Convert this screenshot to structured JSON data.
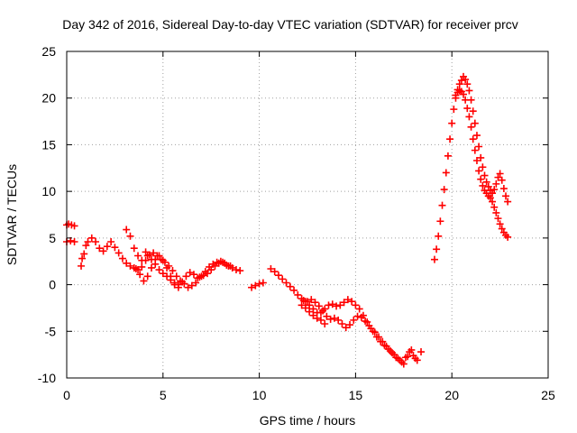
{
  "chart_data": {
    "type": "scatter",
    "title": "Day 342 of 2016, Sidereal Day-to-day VTEC variation (SDTVAR) for receiver prcv",
    "xlabel": "GPS time / hours",
    "ylabel": "SDTVAR / TECUs",
    "xlim": [
      0,
      25
    ],
    "ylim": [
      -10,
      25
    ],
    "xticks": [
      "0",
      "5",
      "10",
      "15",
      "20",
      "25"
    ],
    "yticks": [
      "-10",
      "-5",
      "0",
      "5",
      "10",
      "15",
      "20",
      "25"
    ],
    "grid": true,
    "marker": "+",
    "color": "#ff0000",
    "series": [
      {
        "name": "SDTVAR",
        "x": [
          0.0,
          0.1,
          0.25,
          0.4,
          0.0,
          0.2,
          0.4,
          0.75,
          0.8,
          0.9,
          1.0,
          1.1,
          1.3,
          1.5,
          1.7,
          1.9,
          2.1,
          2.3,
          2.5,
          2.7,
          2.9,
          3.1,
          3.3,
          3.5,
          3.7,
          3.9,
          4.1,
          4.2,
          4.4,
          4.6,
          4.8,
          5.0,
          5.2,
          5.4,
          5.6,
          5.8,
          6.0,
          6.2,
          6.4,
          6.6,
          6.8,
          7.0,
          7.2,
          7.4,
          7.6,
          7.8,
          8.0,
          8.2,
          8.4,
          8.6,
          8.8,
          9.0,
          3.1,
          3.3,
          3.5,
          3.7,
          3.9,
          4.1,
          4.3,
          4.5,
          4.7,
          4.9,
          5.1,
          5.3,
          5.5,
          5.7,
          5.9,
          6.1,
          6.3,
          6.5,
          6.7,
          6.9,
          7.1,
          7.3,
          7.5,
          7.7,
          7.9,
          8.1,
          8.3,
          8.5,
          3.6,
          3.8,
          4.0,
          4.2,
          4.4,
          4.6,
          4.8,
          5.0,
          5.2,
          5.4,
          5.6,
          5.8,
          9.6,
          9.8,
          10.0,
          10.2,
          10.6,
          10.8,
          11.0,
          11.2,
          11.4,
          11.6,
          11.8,
          12.0,
          12.2,
          12.4,
          12.6,
          12.8,
          13.0,
          13.2,
          13.4,
          13.6,
          13.8,
          14.0,
          14.2,
          14.4,
          14.6,
          14.8,
          15.0,
          15.2,
          15.4,
          15.6,
          15.8,
          16.0,
          16.2,
          16.4,
          16.6,
          16.8,
          17.0,
          17.2,
          17.4,
          17.6,
          17.8,
          18.0,
          18.2,
          18.4,
          12.3,
          12.5,
          12.7,
          12.9,
          13.1,
          13.3,
          13.5,
          13.7,
          13.9,
          14.1,
          14.3,
          14.5,
          14.7,
          14.9,
          15.1,
          15.3,
          15.5,
          15.7,
          15.9,
          16.1,
          16.3,
          16.5,
          16.7,
          16.9,
          17.1,
          17.3,
          17.5,
          17.7,
          17.9,
          18.1,
          12.2,
          12.4,
          12.6,
          12.8,
          13.0,
          13.2,
          13.4,
          19.1,
          19.2,
          19.3,
          19.4,
          19.5,
          19.6,
          19.7,
          19.8,
          19.9,
          20.0,
          20.1,
          20.2,
          20.3,
          20.4,
          20.5,
          20.6,
          20.7,
          20.8,
          20.9,
          21.0,
          21.1,
          21.2,
          21.3,
          21.4,
          21.5,
          21.6,
          21.7,
          21.8,
          21.9,
          22.0,
          22.1,
          22.2,
          22.3,
          22.4,
          22.5,
          22.6,
          22.7,
          22.8,
          22.9,
          20.2,
          20.3,
          20.4,
          20.5,
          20.6,
          20.7,
          20.8,
          20.9,
          21.0,
          21.1,
          21.2,
          21.3,
          21.4,
          21.5,
          21.6,
          21.7,
          21.8,
          21.9,
          22.0,
          22.1,
          22.2,
          22.3,
          22.4,
          22.5,
          22.6,
          22.7,
          22.8,
          22.9
        ],
        "y": [
          6.4,
          6.5,
          6.4,
          6.3,
          4.6,
          4.7,
          4.6,
          2.0,
          2.8,
          3.3,
          4.2,
          4.6,
          5.0,
          4.6,
          3.9,
          3.6,
          4.1,
          4.6,
          4.0,
          3.4,
          2.8,
          2.3,
          2.0,
          1.8,
          1.6,
          1.9,
          2.6,
          3.1,
          2.7,
          2.2,
          1.6,
          1.2,
          0.9,
          0.5,
          0.2,
          0.0,
          0.3,
          0.9,
          1.3,
          1.1,
          0.7,
          0.9,
          1.4,
          1.9,
          2.2,
          2.4,
          2.5,
          2.3,
          2.0,
          1.8,
          1.6,
          1.5,
          5.9,
          5.2,
          3.9,
          3.1,
          2.6,
          3.5,
          3.2,
          3.4,
          3.1,
          2.7,
          2.4,
          2.0,
          1.5,
          0.9,
          0.4,
          0.1,
          -0.3,
          -0.1,
          0.2,
          0.8,
          1.0,
          1.2,
          1.6,
          2.0,
          2.3,
          2.4,
          2.1,
          2.0,
          1.7,
          1.1,
          0.4,
          0.9,
          1.8,
          2.7,
          3.1,
          2.6,
          1.8,
          0.9,
          0.0,
          -0.3,
          -0.3,
          -0.1,
          0.1,
          0.2,
          1.7,
          1.4,
          1.0,
          0.6,
          0.2,
          -0.2,
          -0.6,
          -1.1,
          -1.5,
          -1.8,
          -2.2,
          -2.6,
          -3.0,
          -3.0,
          -2.6,
          -2.2,
          -2.1,
          -2.3,
          -2.2,
          -1.9,
          -1.6,
          -1.8,
          -2.2,
          -2.6,
          -3.3,
          -4.0,
          -4.7,
          -5.1,
          -5.6,
          -6.1,
          -6.6,
          -7.1,
          -7.5,
          -7.9,
          -8.3,
          -7.8,
          -7.2,
          -7.6,
          -8.1,
          -7.2,
          -1.7,
          -1.8,
          -1.6,
          -1.9,
          -2.3,
          -2.8,
          -3.4,
          -3.7,
          -3.6,
          -3.8,
          -4.2,
          -4.6,
          -4.3,
          -3.8,
          -3.4,
          -3.5,
          -3.9,
          -4.4,
          -5.0,
          -5.6,
          -6.1,
          -6.5,
          -6.9,
          -7.3,
          -7.8,
          -8.1,
          -8.5,
          -7.7,
          -7.0,
          -7.9,
          -2.2,
          -2.5,
          -2.9,
          -3.3,
          -3.6,
          -3.8,
          -4.2,
          2.7,
          3.8,
          5.2,
          6.8,
          8.5,
          10.2,
          12.0,
          13.8,
          15.6,
          17.3,
          18.8,
          20.0,
          20.9,
          21.5,
          21.9,
          22.3,
          22.0,
          21.5,
          20.8,
          19.8,
          18.6,
          17.3,
          16.0,
          14.8,
          13.6,
          12.6,
          11.7,
          11.0,
          10.5,
          10.1,
          9.8,
          10.2,
          10.8,
          11.5,
          11.9,
          11.2,
          10.3,
          9.5,
          8.9,
          20.3,
          20.6,
          20.8,
          20.7,
          20.4,
          19.8,
          18.9,
          18.0,
          16.9,
          15.6,
          14.4,
          13.3,
          12.2,
          11.3,
          10.6,
          10.1,
          9.8,
          9.5,
          9.3,
          8.9,
          8.3,
          7.7,
          7.1,
          6.5,
          6.0,
          5.6,
          5.3,
          5.1
        ]
      }
    ]
  }
}
